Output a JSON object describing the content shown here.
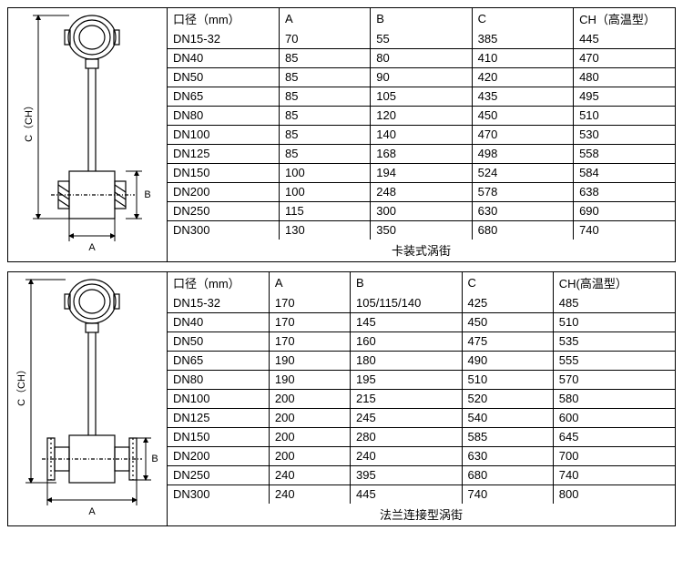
{
  "panel1": {
    "caption": "卡装式涡街",
    "diagram": {
      "c_label": "C（CH）",
      "a_label": "A",
      "b_label": "B",
      "stroke": "#000000",
      "hatch": "#000000"
    },
    "table": {
      "columns": [
        "口径（mm）",
        "A",
        "B",
        "C",
        "CH（高温型）"
      ],
      "col_widths": [
        "22%",
        "18%",
        "20%",
        "20%",
        "20%"
      ],
      "rows": [
        [
          "DN15-32",
          "70",
          "55",
          "385",
          "445"
        ],
        [
          "DN40",
          "85",
          "80",
          "410",
          "470"
        ],
        [
          "DN50",
          "85",
          "90",
          "420",
          "480"
        ],
        [
          "DN65",
          "85",
          "105",
          "435",
          "495"
        ],
        [
          "DN80",
          "85",
          "120",
          "450",
          "510"
        ],
        [
          "DN100",
          "85",
          "140",
          "470",
          "530"
        ],
        [
          "DN125",
          "85",
          "168",
          "498",
          "558"
        ],
        [
          "DN150",
          "100",
          "194",
          "524",
          "584"
        ],
        [
          "DN200",
          "100",
          "248",
          "578",
          "638"
        ],
        [
          "DN250",
          "115",
          "300",
          "630",
          "690"
        ],
        [
          "DN300",
          "130",
          "350",
          "680",
          "740"
        ]
      ]
    }
  },
  "panel2": {
    "caption": "法兰连接型涡街",
    "diagram": {
      "c_label": "C（CH）",
      "a_label": "A",
      "b_label": "B",
      "stroke": "#000000",
      "hatch": "#000000"
    },
    "table": {
      "columns": [
        "口径（mm）",
        "A",
        "B",
        "C",
        "CH(高温型）"
      ],
      "col_widths": [
        "20%",
        "16%",
        "22%",
        "18%",
        "24%"
      ],
      "rows": [
        [
          "DN15-32",
          "170",
          "105/115/140",
          "425",
          "485"
        ],
        [
          "DN40",
          "170",
          "145",
          "450",
          "510"
        ],
        [
          "DN50",
          "170",
          "160",
          "475",
          "535"
        ],
        [
          "DN65",
          "190",
          "180",
          "490",
          "555"
        ],
        [
          "DN80",
          "190",
          "195",
          "510",
          "570"
        ],
        [
          "DN100",
          "200",
          "215",
          "520",
          "580"
        ],
        [
          "DN125",
          "200",
          "245",
          "540",
          "600"
        ],
        [
          "DN150",
          "200",
          "280",
          "585",
          "645"
        ],
        [
          "DN200",
          "200",
          "240",
          "630",
          "700"
        ],
        [
          "DN250",
          "240",
          "395",
          "680",
          "740"
        ],
        [
          "DN300",
          "240",
          "445",
          "740",
          "800"
        ]
      ]
    }
  }
}
